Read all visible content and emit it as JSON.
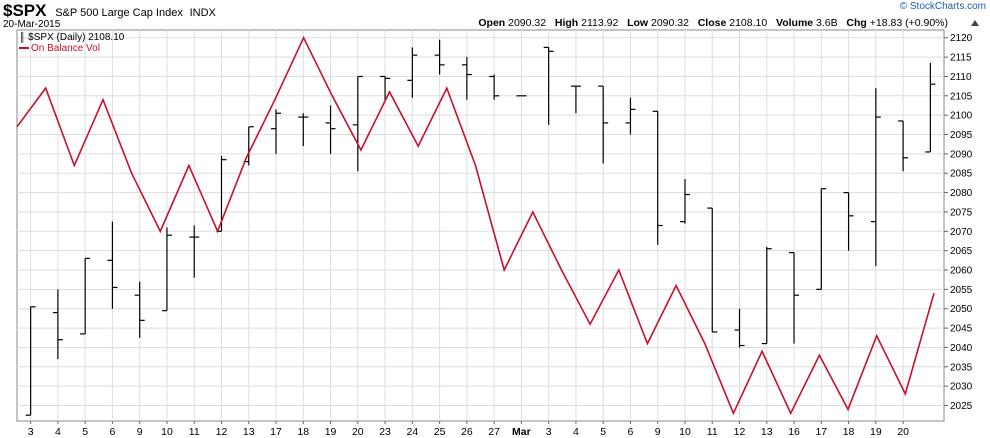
{
  "header": {
    "symbol": "$SPX",
    "name": "S&P 500 Large Cap Index",
    "exchange": "INDX",
    "date": "20-Mar-2015",
    "brand": "© StockCharts.com",
    "open_label": "Open",
    "open": "2090.32",
    "high_label": "High",
    "high": "2113.92",
    "low_label": "Low",
    "low": "2090.32",
    "close_label": "Close",
    "close": "2108.10",
    "volume_label": "Volume",
    "volume": "3.6B",
    "chg_label": "Chg",
    "chg": "+18.83 (+0.90%)"
  },
  "legend": {
    "price": "$SPX (Daily) 2108.10",
    "obv": "On Balance Vol"
  },
  "colors": {
    "obv": "#c8102e",
    "bars": "#000000",
    "grid": "#dddddd"
  },
  "chart_data": {
    "type": "line",
    "ylim": [
      2021,
      2122
    ],
    "y_ticks": [
      2025,
      2030,
      2035,
      2040,
      2045,
      2050,
      2055,
      2060,
      2065,
      2070,
      2075,
      2080,
      2085,
      2090,
      2095,
      2100,
      2105,
      2110,
      2115,
      2120
    ],
    "x_labels": [
      "3",
      "4",
      "5",
      "6",
      "9",
      "10",
      "11",
      "12",
      "13",
      "17",
      "18",
      "19",
      "20",
      "23",
      "24",
      "25",
      "26",
      "27",
      "Mar",
      "3",
      "4",
      "5",
      "6",
      "9",
      "10",
      "11",
      "12",
      "13",
      "16",
      "17",
      "18",
      "19",
      "20"
    ],
    "x_label_index": [
      1,
      3,
      5,
      7,
      9,
      11,
      13,
      15,
      17,
      19,
      21,
      23,
      25,
      27,
      29,
      31,
      33,
      35,
      37,
      39,
      41,
      43,
      45,
      47,
      49,
      51,
      53,
      55,
      57,
      59,
      61,
      63,
      65
    ],
    "series": [
      {
        "kind": "ohlc",
        "bars": [
          {
            "i": 1,
            "o": 2022.5,
            "h": 2050.5,
            "l": 2022.5,
            "c": 2050.5
          },
          {
            "i": 2,
            "o": 2049.0,
            "h": 2055.0,
            "l": 2037.0,
            "c": 2042.0
          },
          {
            "i": 3,
            "o": 2043.5,
            "h": 2063.0,
            "l": 2043.5,
            "c": 2063.0
          },
          {
            "i": 4,
            "o": 2062.5,
            "h": 2072.5,
            "l": 2050.0,
            "c": 2055.5
          },
          {
            "i": 5,
            "o": 2053.5,
            "h": 2057.0,
            "l": 2042.5,
            "c": 2047.0
          },
          {
            "i": 6,
            "o": 2049.5,
            "h": 2071.0,
            "l": 2049.5,
            "c": 2069.0
          },
          {
            "i": 7,
            "o": 2068.5,
            "h": 2071.5,
            "l": 2058.0,
            "c": 2068.5
          },
          {
            "i": 8,
            "o": 2070.0,
            "h": 2089.5,
            "l": 2070.0,
            "c": 2088.5
          },
          {
            "i": 9,
            "o": 2088.0,
            "h": 2097.0,
            "l": 2087.0,
            "c": 2097.0
          },
          {
            "i": 10,
            "o": 2096.5,
            "h": 2101.5,
            "l": 2090.0,
            "c": 2100.5
          },
          {
            "i": 11,
            "o": 2099.5,
            "h": 2100.5,
            "l": 2092.0,
            "c": 2099.5
          },
          {
            "i": 12,
            "o": 2098.0,
            "h": 2102.5,
            "l": 2090.0,
            "c": 2096.5
          },
          {
            "i": 13,
            "o": 2097.5,
            "h": 2110.0,
            "l": 2085.5,
            "c": 2110.0
          },
          {
            "i": 14,
            "o": 2110.0,
            "h": 2110.0,
            "l": 2103.5,
            "c": 2109.5
          },
          {
            "i": 15,
            "o": 2109.0,
            "h": 2117.5,
            "l": 2104.5,
            "c": 2115.5
          },
          {
            "i": 16,
            "o": 2115.5,
            "h": 2119.5,
            "l": 2110.5,
            "c": 2113.0
          },
          {
            "i": 17,
            "o": 2113.0,
            "h": 2115.0,
            "l": 2104.0,
            "c": 2110.5
          },
          {
            "i": 18,
            "o": 2110.0,
            "h": 2110.5,
            "l": 2104.0,
            "c": 2105.0
          },
          {
            "i": 19,
            "o": 2105.0,
            "h": 2105.0,
            "l": 2105.0,
            "c": 2105.0
          },
          {
            "i": 20,
            "o": 2117.5,
            "h": 2117.5,
            "l": 2097.5,
            "c": 2116.5
          },
          {
            "i": 21,
            "o": 2107.5,
            "h": 2107.5,
            "l": 2100.5,
            "c": 2107.5
          },
          {
            "i": 22,
            "o": 2107.5,
            "h": 2107.5,
            "l": 2087.5,
            "c": 2098.0
          },
          {
            "i": 23,
            "o": 2098.0,
            "h": 2104.5,
            "l": 2095.0,
            "c": 2101.5
          },
          {
            "i": 24,
            "o": 2101.0,
            "h": 2101.0,
            "l": 2066.5,
            "c": 2071.5
          },
          {
            "i": 25,
            "o": 2072.5,
            "h": 2083.5,
            "l": 2072.0,
            "c": 2079.5
          },
          {
            "i": 26,
            "o": 2076.0,
            "h": 2076.0,
            "l": 2044.0,
            "c": 2044.0
          },
          {
            "i": 27,
            "o": 2044.5,
            "h": 2050.0,
            "l": 2040.0,
            "c": 2040.5
          },
          {
            "i": 28,
            "o": 2041.0,
            "h": 2066.0,
            "l": 2041.0,
            "c": 2065.5
          },
          {
            "i": 29,
            "o": 2064.5,
            "h": 2064.5,
            "l": 2041.0,
            "c": 2053.5
          },
          {
            "i": 30,
            "o": 2055.0,
            "h": 2081.0,
            "l": 2055.0,
            "c": 2081.0
          },
          {
            "i": 31,
            "o": 2080.0,
            "h": 2080.0,
            "l": 2065.0,
            "c": 2074.0
          },
          {
            "i": 32,
            "o": 2072.5,
            "h": 2107.0,
            "l": 2061.0,
            "c": 2099.5
          },
          {
            "i": 33,
            "o": 2098.5,
            "h": 2098.5,
            "l": 2085.5,
            "c": 2089.0
          },
          {
            "i": 34,
            "o": 2090.5,
            "h": 2113.5,
            "l": 2090.5,
            "c": 2108.0
          }
        ]
      },
      {
        "kind": "line",
        "name": "On Balance Vol",
        "points": [
          [
            0,
            2097
          ],
          [
            1,
            2107
          ],
          [
            2,
            2087
          ],
          [
            3,
            2104
          ],
          [
            4,
            2085
          ],
          [
            5,
            2070
          ],
          [
            6,
            2087
          ],
          [
            7,
            2070
          ],
          [
            8,
            2089
          ],
          [
            9,
            2104
          ],
          [
            10,
            2120
          ],
          [
            11,
            2105
          ],
          [
            12,
            2091
          ],
          [
            13,
            2106
          ],
          [
            14,
            2092
          ],
          [
            15,
            2107
          ],
          [
            16,
            2087
          ],
          [
            17,
            2060
          ],
          [
            18,
            2075
          ],
          [
            19,
            2060
          ],
          [
            20,
            2046
          ],
          [
            21,
            2060
          ],
          [
            22,
            2041
          ],
          [
            23,
            2056
          ],
          [
            24,
            2041
          ],
          [
            25,
            2023
          ],
          [
            26,
            2039
          ],
          [
            27,
            2023
          ],
          [
            28,
            2038
          ],
          [
            29,
            2024
          ],
          [
            30,
            2043
          ],
          [
            31,
            2028
          ],
          [
            32,
            2054
          ]
        ]
      }
    ]
  }
}
